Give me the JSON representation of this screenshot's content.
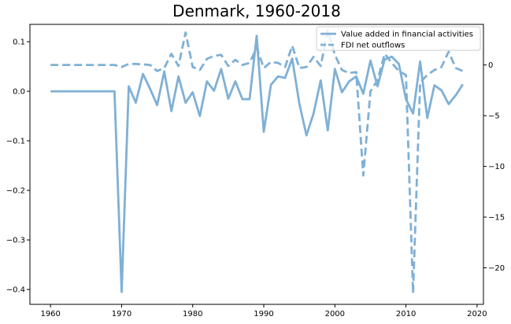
{
  "chart_data": {
    "type": "line",
    "title": "Denmark, 1960-2018",
    "xlabel": "",
    "ylabel_left": "",
    "ylabel_right": "",
    "xlim": [
      1957.1,
      2020.9
    ],
    "ylim_left": [
      -0.43,
      0.135
    ],
    "ylim_right": [
      -23.6,
      4.0
    ],
    "x_ticks": [
      1960,
      1970,
      1980,
      1990,
      2000,
      2010,
      2020
    ],
    "y_left_ticks": [
      0.1,
      0.0,
      -0.1,
      -0.2,
      -0.3,
      -0.4
    ],
    "y_left_tick_labels": [
      "0.1",
      "0.0",
      "−0.1",
      "−0.2",
      "−0.3",
      "−0.4"
    ],
    "y_right_ticks": [
      0,
      -5,
      -10,
      -15,
      -20
    ],
    "y_right_tick_labels": [
      "0",
      "−5",
      "−10",
      "−15",
      "−20"
    ],
    "grid": false,
    "legend_position": "top-right",
    "color": "#7fb0d6",
    "series": [
      {
        "name": "Value added in financial activities",
        "axis": "left",
        "style": "solid",
        "x": [
          1960,
          1961,
          1962,
          1963,
          1964,
          1965,
          1966,
          1967,
          1968,
          1969,
          1970,
          1971,
          1972,
          1973,
          1974,
          1975,
          1976,
          1977,
          1978,
          1979,
          1980,
          1981,
          1982,
          1983,
          1984,
          1985,
          1986,
          1987,
          1988,
          1989,
          1990,
          1991,
          1992,
          1993,
          1994,
          1995,
          1996,
          1997,
          1998,
          1999,
          2000,
          2001,
          2002,
          2003,
          2004,
          2005,
          2006,
          2007,
          2008,
          2009,
          2010,
          2011,
          2012,
          2013,
          2014,
          2015,
          2016,
          2017,
          2018
        ],
        "y": [
          0,
          0,
          0,
          0,
          0,
          0,
          0,
          0,
          0,
          0,
          -0.405,
          0.01,
          -0.023,
          0.035,
          0.005,
          -0.028,
          0.04,
          -0.04,
          0.03,
          -0.023,
          -0.002,
          -0.05,
          0.02,
          0.001,
          0.045,
          -0.015,
          0.02,
          -0.016,
          -0.016,
          0.112,
          -0.082,
          0.013,
          0.03,
          0.027,
          0.066,
          -0.025,
          -0.089,
          -0.045,
          0.022,
          -0.079,
          0.045,
          -0.002,
          0.02,
          0.03,
          -0.005,
          0.062,
          0.01,
          0.064,
          0.07,
          0.055,
          -0.016,
          -0.045,
          0.06,
          -0.054,
          0.012,
          0.002,
          -0.026,
          -0.008,
          0.014
        ]
      },
      {
        "name": "FDI net outflows",
        "axis": "right",
        "style": "dashed",
        "x": [
          1960,
          1961,
          1962,
          1963,
          1964,
          1965,
          1966,
          1967,
          1968,
          1969,
          1970,
          1971,
          1972,
          1973,
          1974,
          1975,
          1976,
          1977,
          1978,
          1979,
          1980,
          1981,
          1982,
          1983,
          1984,
          1985,
          1986,
          1987,
          1988,
          1989,
          1990,
          1991,
          1992,
          1993,
          1994,
          1995,
          1996,
          1997,
          1998,
          1999,
          2000,
          2001,
          2002,
          2003,
          2004,
          2005,
          2006,
          2007,
          2008,
          2009,
          2010,
          2011,
          2012,
          2013,
          2014,
          2015,
          2016,
          2017,
          2018
        ],
        "y": [
          0,
          0,
          0,
          0,
          0,
          0,
          0,
          0,
          0,
          0,
          -0.2,
          0.1,
          0.1,
          0.05,
          0.0,
          -0.6,
          -0.3,
          1.1,
          -0.1,
          3.2,
          -0.2,
          -0.5,
          0.6,
          0.9,
          1.0,
          -0.1,
          0.5,
          0.0,
          0.2,
          1.7,
          -0.3,
          0.3,
          0.2,
          -0.2,
          1.9,
          -0.3,
          -0.2,
          0.8,
          -0.1,
          3.4,
          1.0,
          -0.5,
          -0.8,
          -0.7,
          -10.9,
          -2.6,
          -1.5,
          1.1,
          0.2,
          -0.6,
          -1.0,
          -22.5,
          -1.7,
          -1.0,
          -0.5,
          -0.2,
          1.3,
          -0.3,
          -0.6
        ]
      }
    ]
  }
}
